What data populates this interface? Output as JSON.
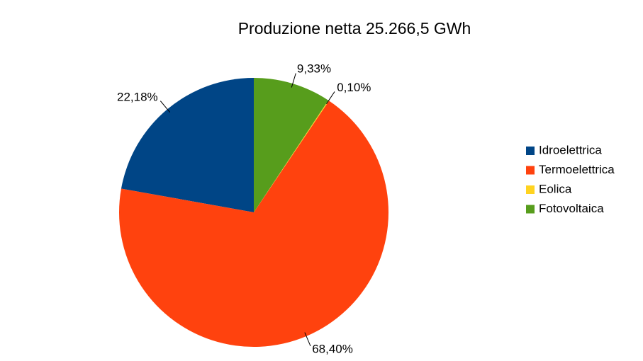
{
  "chart_data": {
    "type": "pie",
    "title": "Produzione netta 25.266,5 GWh",
    "categories": [
      "Idroelettrica",
      "Termoelettrica",
      "Eolica",
      "Fotovoltaica"
    ],
    "values": [
      22.18,
      68.4,
      0.1,
      9.33
    ],
    "value_labels": [
      "22,18%",
      "68,40%",
      "0,10%",
      "9,33%"
    ],
    "colors": [
      "#004586",
      "#ff420e",
      "#ffd320",
      "#579d1c"
    ],
    "legend": "right"
  }
}
